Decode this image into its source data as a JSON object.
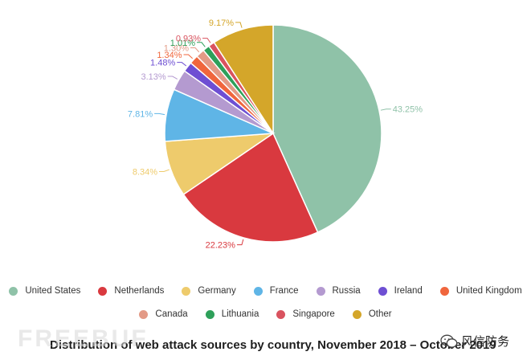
{
  "chart_data": {
    "type": "pie",
    "title": "Distribution of web attack sources by country, November 2018 – October 2019",
    "slices": [
      {
        "label": "United States",
        "value": 43.25,
        "display": "43.25%",
        "color": "#8fc2a8"
      },
      {
        "label": "Netherlands",
        "value": 22.23,
        "display": "22.23%",
        "color": "#d9393f"
      },
      {
        "label": "Germany",
        "value": 8.34,
        "display": "8.34%",
        "color": "#eecb6c"
      },
      {
        "label": "France",
        "value": 7.81,
        "display": "7.81%",
        "color": "#5fb5e6"
      },
      {
        "label": "Russia",
        "value": 3.13,
        "display": "3.13%",
        "color": "#b49ad0"
      },
      {
        "label": "Ireland",
        "value": 1.48,
        "display": "1.48%",
        "color": "#6e4fd3"
      },
      {
        "label": "United Kingdom",
        "value": 1.34,
        "display": "1.34%",
        "color": "#f0663d"
      },
      {
        "label": "Canada",
        "value": 1.3,
        "display": "1.30%",
        "color": "#e39a86"
      },
      {
        "label": "Lithuania",
        "value": 1.01,
        "display": "1.01%",
        "color": "#2ea05a"
      },
      {
        "label": "Singapore",
        "value": 0.93,
        "display": "0.93%",
        "color": "#d9535f"
      },
      {
        "label": "Other",
        "value": 9.17,
        "display": "9.17%",
        "color": "#d4a62a"
      }
    ],
    "legend_position": "bottom"
  },
  "watermark": {
    "left_text": "FREEBUF",
    "right_text": "风信防务",
    "right_icon": "wechat-icon"
  }
}
